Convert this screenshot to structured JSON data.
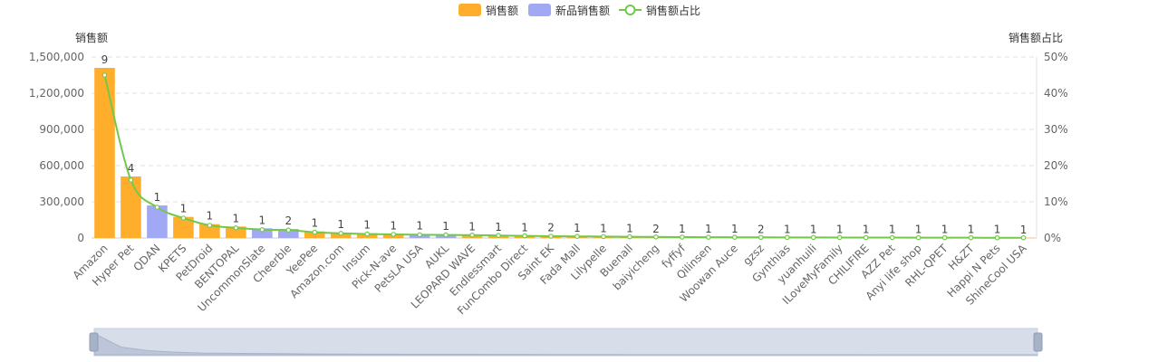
{
  "chart_data": {
    "type": "bar",
    "legend": [
      {
        "label": "销售额",
        "color": "#FFAE2C",
        "kind": "bar"
      },
      {
        "label": "新品销售额",
        "color": "#A1A9F4",
        "kind": "bar"
      },
      {
        "label": "销售额占比",
        "color": "#73C84B",
        "kind": "line"
      }
    ],
    "ylabel_left": "销售额",
    "ylabel_right": "销售额占比",
    "ylim_left": [
      0,
      1500000
    ],
    "yticks_left": [
      "0",
      "300,000",
      "600,000",
      "900,000",
      "1,200,000",
      "1,500,000"
    ],
    "ylim_right": [
      0,
      50
    ],
    "yticks_right": [
      "0%",
      "10%",
      "20%",
      "30%",
      "40%",
      "50%"
    ],
    "grid": true,
    "legend_position": "top-center",
    "categories": [
      "Amazon",
      "Hyper Pet",
      "QDAN",
      "KPETS",
      "PetDroid",
      "BENTOPAL",
      "UncommonSlate",
      "Cheerble",
      "YeePee",
      "Amazon.com",
      "Insum",
      "Pick-N-ave",
      "PetsLA USA",
      "AUKL",
      "LEOPARD WAVE",
      "Endlessmart",
      "FunCombo Direct",
      "Saint EK",
      "Fada Mall",
      "Lilypelle",
      "Buenall",
      "baiyicheng",
      "fyffyf",
      "Qilinsen",
      "Woowan Auce",
      "gzsz",
      "Gynthias",
      "yuanhuili",
      "ILoveMyFamily",
      "CHILIFIRE",
      "AZZ Pet",
      "Anyi life shop",
      "RHL-QPET",
      "H&ZT",
      "Happi N Pets",
      "ShineCool USA"
    ],
    "series": [
      {
        "name": "销售额",
        "kind": "bar",
        "values": [
          1410000,
          510000,
          270000,
          175000,
          115000,
          95000,
          80000,
          75000,
          55000,
          45000,
          40000,
          35000,
          32000,
          30000,
          27000,
          24000,
          20000,
          17000,
          15000,
          13000,
          11000,
          9000,
          8000,
          7000,
          6000,
          5500,
          5000,
          4500,
          4000,
          3500,
          3000,
          2800,
          2500,
          2200,
          2000,
          1800
        ],
        "is_new": [
          false,
          false,
          true,
          false,
          false,
          false,
          true,
          true,
          false,
          false,
          false,
          false,
          true,
          true,
          false,
          false,
          false,
          false,
          false,
          false,
          false,
          false,
          false,
          false,
          false,
          false,
          false,
          false,
          false,
          false,
          false,
          false,
          false,
          false,
          false,
          false
        ]
      },
      {
        "name": "销售额占比",
        "kind": "line",
        "values": [
          45.0,
          16.0,
          8.5,
          5.5,
          3.5,
          2.8,
          2.3,
          2.2,
          1.6,
          1.3,
          1.1,
          1.0,
          0.9,
          0.85,
          0.8,
          0.7,
          0.6,
          0.5,
          0.45,
          0.4,
          0.35,
          0.3,
          0.25,
          0.22,
          0.2,
          0.18,
          0.16,
          0.15,
          0.14,
          0.12,
          0.11,
          0.1,
          0.09,
          0.08,
          0.07,
          0.06
        ]
      }
    ],
    "bar_labels": [
      "9",
      "4",
      "1",
      "1",
      "1",
      "1",
      "1",
      "2",
      "1",
      "1",
      "1",
      "1",
      "1",
      "1",
      "1",
      "1",
      "1",
      "2",
      "1",
      "1",
      "1",
      "2",
      "1",
      "1",
      "1",
      "2",
      "1",
      "1",
      "1",
      "1",
      "1",
      "1",
      "1",
      "1",
      "1",
      "1"
    ]
  }
}
